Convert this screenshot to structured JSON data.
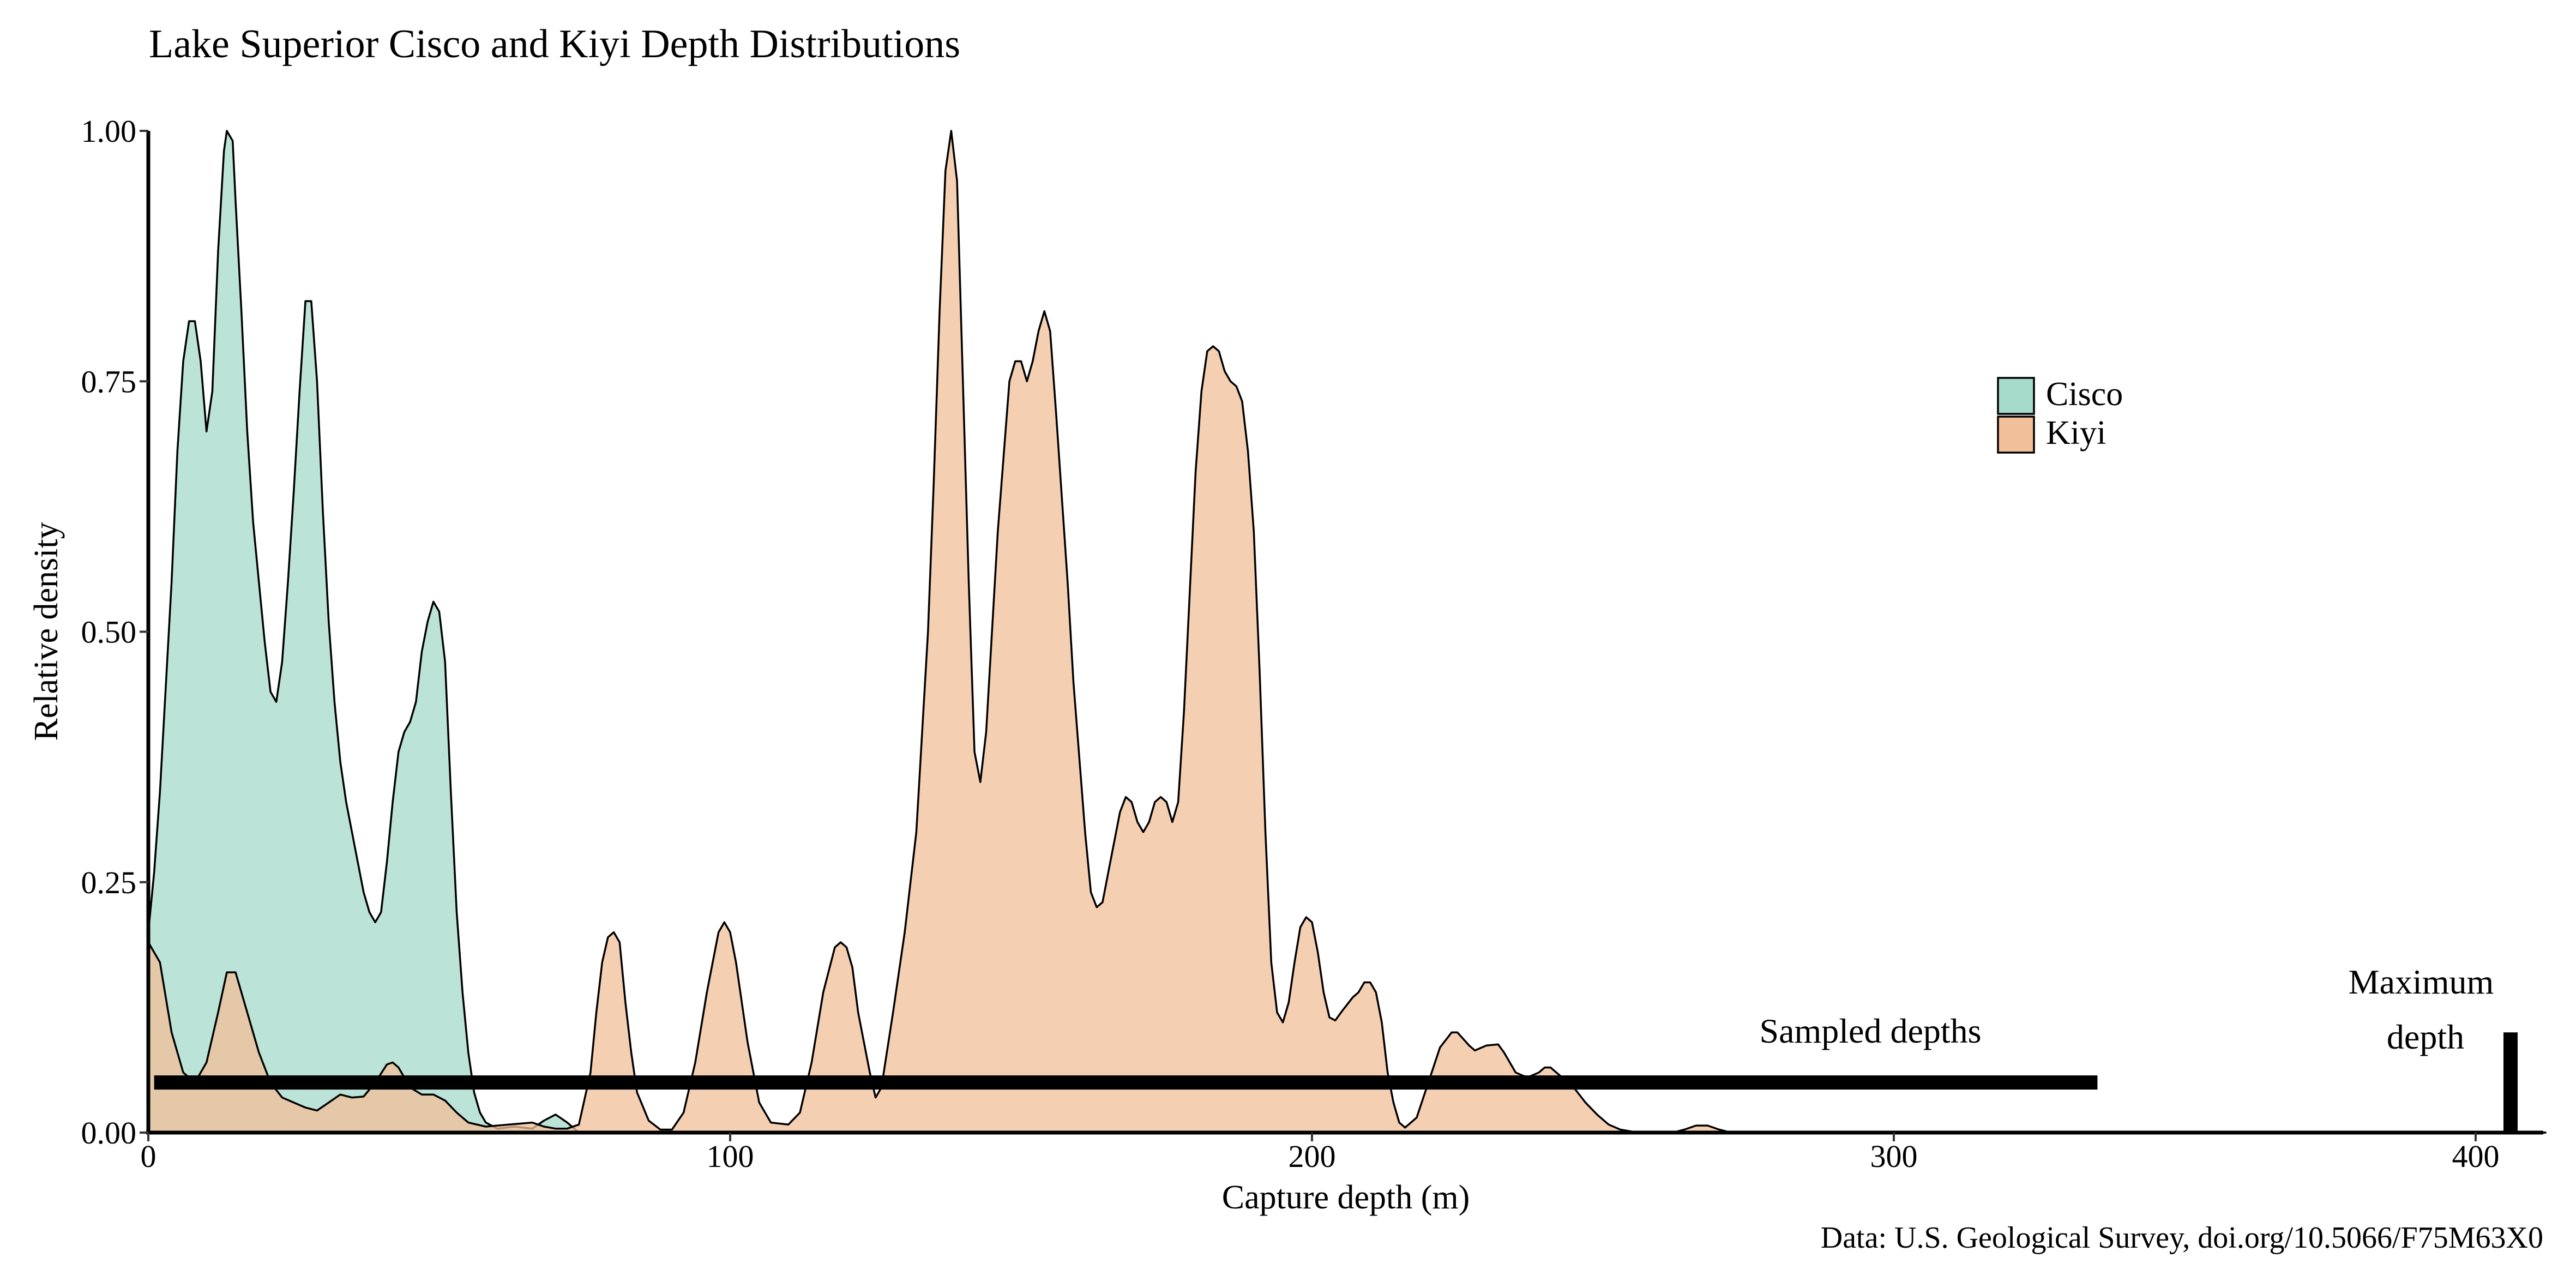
{
  "chart_data": {
    "type": "area",
    "title": "Lake Superior Cisco and Kiyi Depth Distributions",
    "xlabel": "Capture depth (m)",
    "ylabel": "Relative density",
    "caption": "Data: U.S. Geological Survey, doi.org/10.5066/F75M63X0",
    "xlim": [
      0,
      412
    ],
    "ylim": [
      0,
      1.0
    ],
    "x_ticks": [
      0,
      100,
      200,
      300,
      400
    ],
    "y_ticks": [
      0,
      0.25,
      0.5,
      0.75,
      1.0
    ],
    "x_tick_labels": [
      "0",
      "100",
      "200",
      "300",
      "400"
    ],
    "y_tick_labels": [
      "0.00",
      "0.25",
      "0.50",
      "0.75",
      "1.00"
    ],
    "grid": false,
    "legend_position": "right",
    "legend": [
      {
        "label": "Cisco",
        "color": "#a6dacb"
      },
      {
        "label": "Kiyi",
        "color": "#f1bf98"
      }
    ],
    "series": [
      {
        "name": "Cisco",
        "color": "#a6dacb",
        "points": [
          [
            0,
            0.2
          ],
          [
            1,
            0.26
          ],
          [
            2,
            0.34
          ],
          [
            4,
            0.55
          ],
          [
            5,
            0.68
          ],
          [
            6,
            0.77
          ],
          [
            7,
            0.81
          ],
          [
            8,
            0.81
          ],
          [
            9,
            0.77
          ],
          [
            10,
            0.7
          ],
          [
            11,
            0.74
          ],
          [
            12,
            0.88
          ],
          [
            13,
            0.98
          ],
          [
            13.5,
            1.0
          ],
          [
            14.5,
            0.99
          ],
          [
            15,
            0.93
          ],
          [
            16,
            0.82
          ],
          [
            17,
            0.7
          ],
          [
            18,
            0.61
          ],
          [
            19,
            0.55
          ],
          [
            20,
            0.49
          ],
          [
            21,
            0.44
          ],
          [
            22,
            0.43
          ],
          [
            23,
            0.47
          ],
          [
            24,
            0.55
          ],
          [
            25,
            0.64
          ],
          [
            26,
            0.74
          ],
          [
            27,
            0.83
          ],
          [
            28,
            0.83
          ],
          [
            29,
            0.75
          ],
          [
            30,
            0.62
          ],
          [
            31,
            0.51
          ],
          [
            32,
            0.43
          ],
          [
            33,
            0.37
          ],
          [
            34,
            0.33
          ],
          [
            36,
            0.27
          ],
          [
            37,
            0.24
          ],
          [
            38,
            0.22
          ],
          [
            39,
            0.21
          ],
          [
            40,
            0.22
          ],
          [
            41,
            0.27
          ],
          [
            42,
            0.33
          ],
          [
            43,
            0.38
          ],
          [
            44,
            0.4
          ],
          [
            45,
            0.41
          ],
          [
            46,
            0.43
          ],
          [
            47,
            0.48
          ],
          [
            48,
            0.51
          ],
          [
            49,
            0.53
          ],
          [
            50,
            0.52
          ],
          [
            51,
            0.47
          ],
          [
            52,
            0.34
          ],
          [
            53,
            0.22
          ],
          [
            54,
            0.14
          ],
          [
            55,
            0.08
          ],
          [
            56,
            0.04
          ],
          [
            57,
            0.02
          ],
          [
            58,
            0.01
          ],
          [
            60,
            0.004
          ],
          [
            63,
            0.006
          ],
          [
            66,
            0.004
          ],
          [
            68,
            0.012
          ],
          [
            70,
            0.018
          ],
          [
            72,
            0.01
          ],
          [
            74,
            0.0
          ],
          [
            412,
            0.0
          ]
        ]
      },
      {
        "name": "Kiyi",
        "color": "#f1bf98",
        "points": [
          [
            0,
            0.19
          ],
          [
            2,
            0.17
          ],
          [
            4,
            0.1
          ],
          [
            6,
            0.06
          ],
          [
            8,
            0.05
          ],
          [
            10,
            0.07
          ],
          [
            12,
            0.12
          ],
          [
            13.5,
            0.16
          ],
          [
            15,
            0.16
          ],
          [
            17,
            0.12
          ],
          [
            19,
            0.08
          ],
          [
            21,
            0.05
          ],
          [
            23,
            0.035
          ],
          [
            25,
            0.03
          ],
          [
            27,
            0.025
          ],
          [
            29,
            0.022
          ],
          [
            31,
            0.03
          ],
          [
            33,
            0.038
          ],
          [
            35,
            0.035
          ],
          [
            37,
            0.036
          ],
          [
            39,
            0.05
          ],
          [
            41,
            0.068
          ],
          [
            42,
            0.07
          ],
          [
            43,
            0.065
          ],
          [
            45,
            0.045
          ],
          [
            47,
            0.038
          ],
          [
            49,
            0.038
          ],
          [
            51,
            0.032
          ],
          [
            53,
            0.02
          ],
          [
            55,
            0.01
          ],
          [
            58,
            0.006
          ],
          [
            62,
            0.008
          ],
          [
            66,
            0.01
          ],
          [
            68,
            0.006
          ],
          [
            70,
            0.004
          ],
          [
            72,
            0.004
          ],
          [
            74,
            0.008
          ],
          [
            76,
            0.06
          ],
          [
            77,
            0.12
          ],
          [
            78,
            0.17
          ],
          [
            79,
            0.195
          ],
          [
            80,
            0.2
          ],
          [
            81,
            0.19
          ],
          [
            82,
            0.13
          ],
          [
            83,
            0.08
          ],
          [
            84,
            0.04
          ],
          [
            86,
            0.012
          ],
          [
            88,
            0.003
          ],
          [
            90,
            0.003
          ],
          [
            92,
            0.02
          ],
          [
            94,
            0.07
          ],
          [
            96,
            0.14
          ],
          [
            98,
            0.2
          ],
          [
            99,
            0.21
          ],
          [
            100,
            0.2
          ],
          [
            101,
            0.17
          ],
          [
            103,
            0.09
          ],
          [
            105,
            0.03
          ],
          [
            107,
            0.01
          ],
          [
            110,
            0.008
          ],
          [
            112,
            0.02
          ],
          [
            114,
            0.07
          ],
          [
            116,
            0.14
          ],
          [
            118,
            0.185
          ],
          [
            119,
            0.19
          ],
          [
            120,
            0.185
          ],
          [
            121,
            0.165
          ],
          [
            122,
            0.12
          ],
          [
            124,
            0.06
          ],
          [
            125,
            0.035
          ],
          [
            126,
            0.045
          ],
          [
            128,
            0.12
          ],
          [
            130,
            0.2
          ],
          [
            132,
            0.3
          ],
          [
            134,
            0.5
          ],
          [
            135,
            0.65
          ],
          [
            136,
            0.82
          ],
          [
            137,
            0.96
          ],
          [
            138,
            1.0
          ],
          [
            139,
            0.95
          ],
          [
            140,
            0.75
          ],
          [
            141,
            0.55
          ],
          [
            142,
            0.38
          ],
          [
            143,
            0.35
          ],
          [
            144,
            0.4
          ],
          [
            146,
            0.6
          ],
          [
            148,
            0.75
          ],
          [
            149,
            0.77
          ],
          [
            150,
            0.77
          ],
          [
            151,
            0.75
          ],
          [
            152,
            0.77
          ],
          [
            153,
            0.8
          ],
          [
            154,
            0.82
          ],
          [
            155,
            0.8
          ],
          [
            156,
            0.72
          ],
          [
            158,
            0.55
          ],
          [
            159,
            0.45
          ],
          [
            161,
            0.3
          ],
          [
            162,
            0.24
          ],
          [
            163,
            0.225
          ],
          [
            164,
            0.23
          ],
          [
            165,
            0.26
          ],
          [
            166,
            0.29
          ],
          [
            167,
            0.32
          ],
          [
            168,
            0.335
          ],
          [
            169,
            0.33
          ],
          [
            170,
            0.31
          ],
          [
            171,
            0.3
          ],
          [
            172,
            0.31
          ],
          [
            173,
            0.33
          ],
          [
            174,
            0.335
          ],
          [
            175,
            0.33
          ],
          [
            176,
            0.31
          ],
          [
            177,
            0.33
          ],
          [
            178,
            0.42
          ],
          [
            180,
            0.66
          ],
          [
            181,
            0.74
          ],
          [
            182,
            0.78
          ],
          [
            183,
            0.785
          ],
          [
            184,
            0.78
          ],
          [
            185,
            0.76
          ],
          [
            186,
            0.75
          ],
          [
            187,
            0.745
          ],
          [
            188,
            0.73
          ],
          [
            189,
            0.68
          ],
          [
            190,
            0.6
          ],
          [
            191,
            0.46
          ],
          [
            192,
            0.3
          ],
          [
            193,
            0.17
          ],
          [
            194,
            0.12
          ],
          [
            195,
            0.11
          ],
          [
            196,
            0.13
          ],
          [
            197,
            0.17
          ],
          [
            198,
            0.205
          ],
          [
            199,
            0.215
          ],
          [
            200,
            0.21
          ],
          [
            201,
            0.18
          ],
          [
            202,
            0.14
          ],
          [
            203,
            0.115
          ],
          [
            204,
            0.112
          ],
          [
            205,
            0.12
          ],
          [
            207,
            0.135
          ],
          [
            208,
            0.14
          ],
          [
            209,
            0.15
          ],
          [
            210,
            0.15
          ],
          [
            211,
            0.14
          ],
          [
            212,
            0.11
          ],
          [
            213,
            0.06
          ],
          [
            214,
            0.03
          ],
          [
            215,
            0.01
          ],
          [
            216,
            0.005
          ],
          [
            218,
            0.015
          ],
          [
            220,
            0.05
          ],
          [
            222,
            0.085
          ],
          [
            224,
            0.1
          ],
          [
            225,
            0.1
          ],
          [
            227,
            0.087
          ],
          [
            228,
            0.082
          ],
          [
            230,
            0.087
          ],
          [
            232,
            0.088
          ],
          [
            233,
            0.08
          ],
          [
            234,
            0.07
          ],
          [
            235,
            0.06
          ],
          [
            237,
            0.055
          ],
          [
            239,
            0.06
          ],
          [
            240,
            0.065
          ],
          [
            241,
            0.065
          ],
          [
            243,
            0.055
          ],
          [
            245,
            0.045
          ],
          [
            247,
            0.03
          ],
          [
            249,
            0.018
          ],
          [
            251,
            0.008
          ],
          [
            253,
            0.003
          ],
          [
            256,
            0.0
          ],
          [
            262,
            0.0
          ],
          [
            264,
            0.003
          ],
          [
            266,
            0.007
          ],
          [
            268,
            0.007
          ],
          [
            270,
            0.003
          ],
          [
            272,
            0.0
          ],
          [
            412,
            0.0
          ]
        ]
      }
    ],
    "annotations": [
      {
        "text": "Sampled depths",
        "range_m": [
          1,
          335
        ],
        "y": 0.05
      },
      {
        "text": "Maximum depth",
        "x": 406,
        "y_range": [
          0,
          0.1
        ]
      }
    ]
  }
}
